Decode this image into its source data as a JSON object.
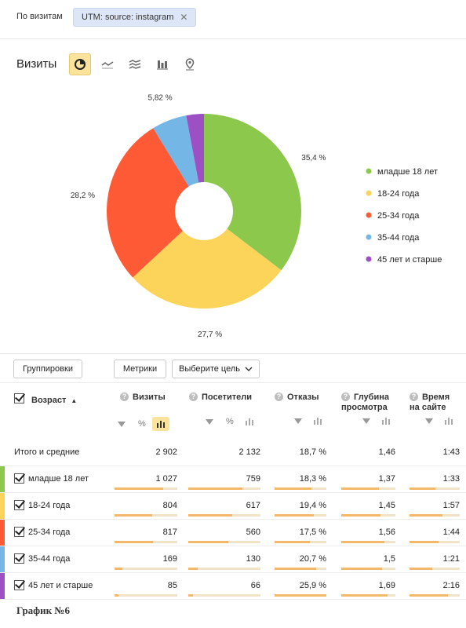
{
  "filter": {
    "label": "По визитам",
    "chip": "UTM: source: instagram",
    "chip_close": "✕"
  },
  "view": {
    "title": "Визиты"
  },
  "chart_data": {
    "type": "pie",
    "slices": [
      {
        "label": "младше 18 лет",
        "value": 35.4,
        "display": "35,4 %",
        "color": "#8cc84b"
      },
      {
        "label": "18-24 года",
        "value": 27.7,
        "display": "27,7 %",
        "color": "#fcd45a"
      },
      {
        "label": "25-34 года",
        "value": 28.2,
        "display": "28,2 %",
        "color": "#ff5a36"
      },
      {
        "label": "35-44 года",
        "value": 5.82,
        "display": "5,82 %",
        "color": "#74b6e6"
      },
      {
        "label": "45 лет и старше",
        "value": 2.93,
        "display": "",
        "color": "#9d4fc4"
      }
    ],
    "legend_position": "right"
  },
  "buttons": {
    "groupings": "Группировки",
    "metrics": "Метрики",
    "goal": "Выберите цель"
  },
  "table": {
    "headers": {
      "age": "Возраст",
      "sort_arrow": "▲",
      "visits": "Визиты",
      "visitors": "Посетители",
      "bounces": "Отказы",
      "depth_line1": "Глубина",
      "depth_line2": "просмотра",
      "time_line1": "Время",
      "time_line2": "на сайте",
      "percent": "%"
    },
    "total": {
      "label": "Итого и средние",
      "visits": "2 902",
      "visitors": "2 132",
      "bounces": "18,7 %",
      "depth": "1,46",
      "time": "1:43"
    },
    "rows": [
      {
        "label": "младше 18 лет",
        "color": "#8cc84b",
        "visits": "1 027",
        "visitors": "759",
        "bounces": "18,3 %",
        "depth": "1,37",
        "time": "1:33",
        "bars": [
          0.77,
          0.75,
          0.71,
          0.69,
          0.52
        ]
      },
      {
        "label": "18-24 года",
        "color": "#fcd45a",
        "visits": "804",
        "visitors": "617",
        "bounces": "19,4 %",
        "depth": "1,45",
        "time": "1:57",
        "bars": [
          0.6,
          0.61,
          0.75,
          0.73,
          0.65
        ]
      },
      {
        "label": "25-34 года",
        "color": "#ff5a36",
        "visits": "817",
        "visitors": "560",
        "bounces": "17,5 %",
        "depth": "1,56",
        "time": "1:44",
        "bars": [
          0.61,
          0.55,
          0.68,
          0.79,
          0.58
        ]
      },
      {
        "label": "35-44 года",
        "color": "#74b6e6",
        "visits": "169",
        "visitors": "130",
        "bounces": "20,7 %",
        "depth": "1,5",
        "time": "1:21",
        "bars": [
          0.13,
          0.13,
          0.8,
          0.76,
          0.45
        ]
      },
      {
        "label": "45 лет и старше",
        "color": "#9d4fc4",
        "visits": "85",
        "visitors": "66",
        "bounces": "25,9 %",
        "depth": "1,69",
        "time": "2:16",
        "bars": [
          0.06,
          0.07,
          1.0,
          0.86,
          0.76
        ]
      }
    ]
  },
  "caption": "График №6"
}
